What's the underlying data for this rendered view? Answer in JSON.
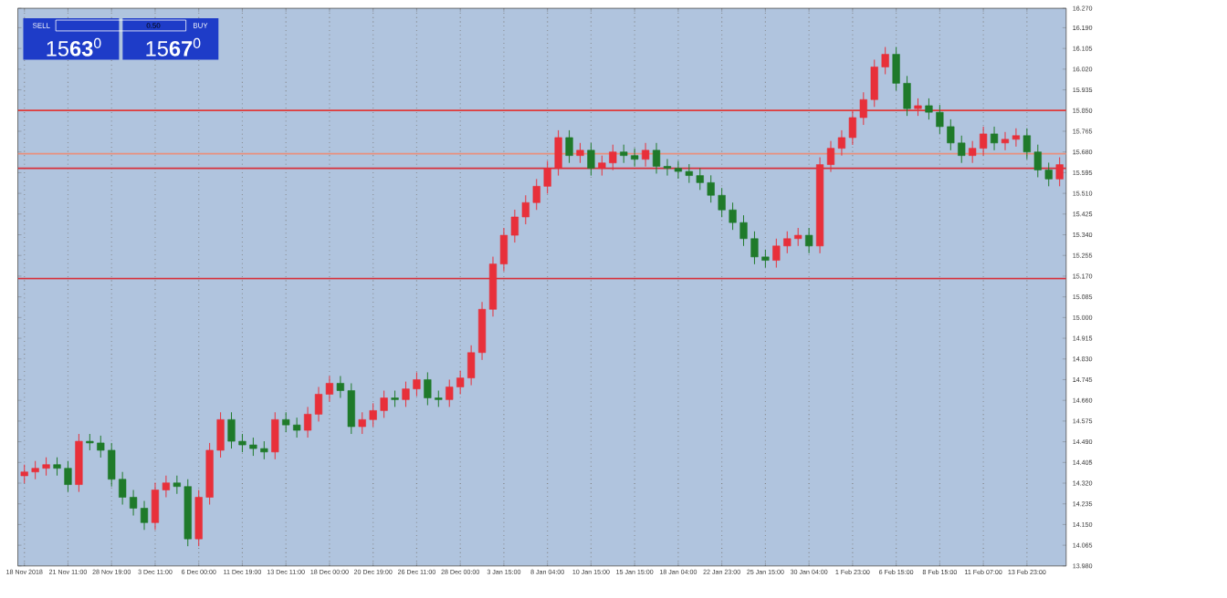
{
  "chart_data": {
    "type": "candlestick",
    "categories": [
      "18 Nov 2018",
      null,
      null,
      null,
      "21 Nov 11:00",
      null,
      null,
      null,
      "28 Nov 19:00",
      null,
      null,
      null,
      "3 Dec 11:00",
      null,
      null,
      null,
      "6 Dec 00:00",
      null,
      null,
      null,
      "11 Dec 19:00",
      null,
      null,
      null,
      "13 Dec 11:00",
      null,
      null,
      null,
      "18 Dec 00:00",
      null,
      null,
      null,
      "20 Dec 19:00",
      null,
      null,
      null,
      "26 Dec 11:00",
      null,
      null,
      null,
      "28 Dec 00:00",
      null,
      null,
      null,
      "3 Jan 15:00",
      null,
      null,
      null,
      "8 Jan 04:00",
      null,
      null,
      null,
      "10 Jan 15:00",
      null,
      null,
      null,
      "15 Jan 15:00",
      null,
      null,
      null,
      "18 Jan 04:00",
      null,
      null,
      null,
      "22 Jan 23:00",
      null,
      null,
      null,
      "25 Jan 15:00",
      null,
      null,
      null,
      "30 Jan 04:00",
      null,
      null,
      null,
      "1 Feb 23:00",
      null,
      null,
      null,
      "6 Feb 15:00",
      null,
      null,
      null,
      "8 Feb 15:00",
      null,
      null,
      null,
      "11 Feb 07:00",
      null,
      null,
      null,
      "13 Feb 23:00",
      null,
      null,
      null
    ],
    "ohlc": [
      [
        14.35,
        14.396,
        14.32,
        14.366
      ],
      [
        14.366,
        14.411,
        14.336,
        14.381
      ],
      [
        14.381,
        14.426,
        14.351,
        14.396
      ],
      [
        14.396,
        14.426,
        14.351,
        14.381
      ],
      [
        14.381,
        14.411,
        14.284,
        14.314
      ],
      [
        14.314,
        14.522,
        14.284,
        14.492
      ],
      [
        14.492,
        14.522,
        14.455,
        14.485
      ],
      [
        14.485,
        14.515,
        14.425,
        14.455
      ],
      [
        14.455,
        14.485,
        14.306,
        14.336
      ],
      [
        14.336,
        14.366,
        14.232,
        14.262
      ],
      [
        14.262,
        14.292,
        14.187,
        14.217
      ],
      [
        14.217,
        14.247,
        14.128,
        14.158
      ],
      [
        14.158,
        14.322,
        14.128,
        14.292
      ],
      [
        14.292,
        14.351,
        14.262,
        14.321
      ],
      [
        14.321,
        14.351,
        14.276,
        14.306
      ],
      [
        14.306,
        14.336,
        14.061,
        14.091
      ],
      [
        14.091,
        14.292,
        14.061,
        14.262
      ],
      [
        14.262,
        14.485,
        14.232,
        14.455
      ],
      [
        14.455,
        14.611,
        14.425,
        14.581
      ],
      [
        14.581,
        14.611,
        14.462,
        14.492
      ],
      [
        14.492,
        14.522,
        14.447,
        14.477
      ],
      [
        14.477,
        14.507,
        14.432,
        14.462
      ],
      [
        14.462,
        14.492,
        14.418,
        14.448
      ],
      [
        14.448,
        14.611,
        14.418,
        14.581
      ],
      [
        14.581,
        14.611,
        14.529,
        14.559
      ],
      [
        14.559,
        14.589,
        14.507,
        14.537
      ],
      [
        14.537,
        14.633,
        14.507,
        14.603
      ],
      [
        14.603,
        14.715,
        14.573,
        14.685
      ],
      [
        14.685,
        14.76,
        14.655,
        14.73
      ],
      [
        14.73,
        14.76,
        14.67,
        14.7
      ],
      [
        14.7,
        14.73,
        14.522,
        14.552
      ],
      [
        14.552,
        14.611,
        14.522,
        14.581
      ],
      [
        14.581,
        14.648,
        14.551,
        14.618
      ],
      [
        14.618,
        14.7,
        14.588,
        14.67
      ],
      [
        14.67,
        14.7,
        14.633,
        14.663
      ],
      [
        14.663,
        14.737,
        14.633,
        14.707
      ],
      [
        14.707,
        14.775,
        14.677,
        14.745
      ],
      [
        14.745,
        14.775,
        14.64,
        14.67
      ],
      [
        14.67,
        14.7,
        14.633,
        14.663
      ],
      [
        14.663,
        14.745,
        14.633,
        14.715
      ],
      [
        14.715,
        14.782,
        14.685,
        14.752
      ],
      [
        14.752,
        14.886,
        14.722,
        14.856
      ],
      [
        14.856,
        15.064,
        14.826,
        15.034
      ],
      [
        15.034,
        15.25,
        15.004,
        15.22
      ],
      [
        15.22,
        15.368,
        15.19,
        15.338
      ],
      [
        15.338,
        15.443,
        15.308,
        15.413
      ],
      [
        15.413,
        15.502,
        15.383,
        15.472
      ],
      [
        15.472,
        15.569,
        15.442,
        15.539
      ],
      [
        15.539,
        15.643,
        15.509,
        15.613
      ],
      [
        15.613,
        15.769,
        15.583,
        15.739
      ],
      [
        15.739,
        15.769,
        15.635,
        15.665
      ],
      [
        15.665,
        15.717,
        15.635,
        15.687
      ],
      [
        15.687,
        15.717,
        15.583,
        15.613
      ],
      [
        15.613,
        15.665,
        15.583,
        15.635
      ],
      [
        15.635,
        15.71,
        15.605,
        15.68
      ],
      [
        15.68,
        15.71,
        15.635,
        15.665
      ],
      [
        15.665,
        15.695,
        15.62,
        15.65
      ],
      [
        15.65,
        15.717,
        15.62,
        15.687
      ],
      [
        15.687,
        15.717,
        15.591,
        15.621
      ],
      [
        15.621,
        15.651,
        15.583,
        15.613
      ],
      [
        15.613,
        15.643,
        15.57,
        15.6
      ],
      [
        15.6,
        15.63,
        15.553,
        15.583
      ],
      [
        15.583,
        15.613,
        15.524,
        15.554
      ],
      [
        15.554,
        15.584,
        15.472,
        15.502
      ],
      [
        15.502,
        15.532,
        15.412,
        15.442
      ],
      [
        15.442,
        15.472,
        15.36,
        15.39
      ],
      [
        15.39,
        15.42,
        15.294,
        15.324
      ],
      [
        15.324,
        15.354,
        15.219,
        15.249
      ],
      [
        15.249,
        15.279,
        15.205,
        15.235
      ],
      [
        15.235,
        15.324,
        15.205,
        15.294
      ],
      [
        15.294,
        15.354,
        15.264,
        15.324
      ],
      [
        15.324,
        15.368,
        15.294,
        15.338
      ],
      [
        15.338,
        15.368,
        15.264,
        15.294
      ],
      [
        15.294,
        15.658,
        15.264,
        15.628
      ],
      [
        15.628,
        15.725,
        15.598,
        15.695
      ],
      [
        15.695,
        15.769,
        15.665,
        15.739
      ],
      [
        15.739,
        15.851,
        15.709,
        15.821
      ],
      [
        15.821,
        15.925,
        15.791,
        15.895
      ],
      [
        15.895,
        16.059,
        15.865,
        16.029
      ],
      [
        16.029,
        16.111,
        15.999,
        16.081
      ],
      [
        16.081,
        16.111,
        15.932,
        15.962
      ],
      [
        15.962,
        15.992,
        15.828,
        15.858
      ],
      [
        15.858,
        15.9,
        15.828,
        15.87
      ],
      [
        15.87,
        15.9,
        15.813,
        15.843
      ],
      [
        15.843,
        15.873,
        15.754,
        15.784
      ],
      [
        15.784,
        15.814,
        15.687,
        15.717
      ],
      [
        15.717,
        15.747,
        15.635,
        15.665
      ],
      [
        15.665,
        15.725,
        15.635,
        15.695
      ],
      [
        15.695,
        15.784,
        15.665,
        15.754
      ],
      [
        15.754,
        15.784,
        15.687,
        15.717
      ],
      [
        15.717,
        15.762,
        15.687,
        15.732
      ],
      [
        15.732,
        15.777,
        15.702,
        15.747
      ],
      [
        15.747,
        15.777,
        15.65,
        15.68
      ],
      [
        15.68,
        15.71,
        15.576,
        15.606
      ],
      [
        15.606,
        15.636,
        15.539,
        15.569
      ],
      [
        15.569,
        15.658,
        15.539,
        15.628
      ]
    ],
    "colors": [
      "#e8303a",
      "#e8303a",
      "#e8303a",
      "#1f7a2a",
      "#1f7a2a",
      "#e8303a",
      "#1f7a2a",
      "#1f7a2a",
      "#1f7a2a",
      "#1f7a2a",
      "#1f7a2a",
      "#1f7a2a",
      "#e8303a",
      "#e8303a",
      "#1f7a2a",
      "#1f7a2a",
      "#e8303a",
      "#e8303a",
      "#e8303a",
      "#1f7a2a",
      "#1f7a2a",
      "#1f7a2a",
      "#1f7a2a",
      "#e8303a",
      "#1f7a2a",
      "#1f7a2a",
      "#e8303a",
      "#e8303a",
      "#e8303a",
      "#1f7a2a",
      "#1f7a2a",
      "#e8303a",
      "#e8303a",
      "#e8303a",
      "#1f7a2a",
      "#e8303a",
      "#e8303a",
      "#1f7a2a",
      "#1f7a2a",
      "#e8303a",
      "#e8303a",
      "#e8303a",
      "#e8303a",
      "#e8303a",
      "#e8303a",
      "#e8303a",
      "#e8303a",
      "#e8303a",
      "#e8303a",
      "#e8303a",
      "#1f7a2a",
      "#e8303a",
      "#1f7a2a",
      "#e8303a",
      "#e8303a",
      "#1f7a2a",
      "#1f7a2a",
      "#e8303a",
      "#1f7a2a",
      "#1f7a2a",
      "#1f7a2a",
      "#1f7a2a",
      "#1f7a2a",
      "#1f7a2a",
      "#1f7a2a",
      "#1f7a2a",
      "#1f7a2a",
      "#1f7a2a",
      "#1f7a2a",
      "#e8303a",
      "#e8303a",
      "#e8303a",
      "#1f7a2a",
      "#e8303a",
      "#e8303a",
      "#e8303a",
      "#e8303a",
      "#e8303a",
      "#e8303a",
      "#e8303a",
      "#1f7a2a",
      "#1f7a2a",
      "#e8303a",
      "#1f7a2a",
      "#1f7a2a",
      "#1f7a2a",
      "#1f7a2a",
      "#e8303a",
      "#e8303a",
      "#1f7a2a",
      "#e8303a",
      "#e8303a",
      "#1f7a2a",
      "#1f7a2a",
      "#1f7a2a",
      "#e8303a"
    ],
    "ylim": [
      13.98,
      16.27
    ],
    "yticks": [
      {
        "value": 13.98,
        "label": "13.980"
      },
      {
        "value": 14.065,
        "label": "14.065"
      },
      {
        "value": 14.15,
        "label": "14.150"
      },
      {
        "value": 14.235,
        "label": "14.235"
      },
      {
        "value": 14.32,
        "label": "14.320"
      },
      {
        "value": 14.405,
        "label": "14.405"
      },
      {
        "value": 14.49,
        "label": "14.490"
      },
      {
        "value": 14.575,
        "label": "14.575"
      },
      {
        "value": 14.66,
        "label": "14.660"
      },
      {
        "value": 14.745,
        "label": "14.745"
      },
      {
        "value": 14.83,
        "label": "14.830"
      },
      {
        "value": 14.915,
        "label": "14.915"
      },
      {
        "value": 15.0,
        "label": "15.000"
      },
      {
        "value": 15.085,
        "label": "15.085"
      },
      {
        "value": 15.17,
        "label": "15.170"
      },
      {
        "value": 15.255,
        "label": "15.255"
      },
      {
        "value": 15.34,
        "label": "15.340"
      },
      {
        "value": 15.425,
        "label": "15.425"
      },
      {
        "value": 15.51,
        "label": "15.510"
      },
      {
        "value": 15.595,
        "label": "15.595"
      },
      {
        "value": 15.68,
        "label": "15.680"
      },
      {
        "value": 15.765,
        "label": "15.765"
      },
      {
        "value": 15.85,
        "label": "15.850"
      },
      {
        "value": 15.935,
        "label": "15.935"
      },
      {
        "value": 16.02,
        "label": "16.020"
      },
      {
        "value": 16.105,
        "label": "16.105"
      },
      {
        "value": 16.19,
        "label": "16.190"
      },
      {
        "value": 16.27,
        "label": "16.270"
      }
    ],
    "ref_lines": [
      {
        "axis": "y",
        "value": 15.851,
        "color": "#e03a3a"
      },
      {
        "axis": "y",
        "value": 15.673,
        "color": "#e8907e"
      },
      {
        "axis": "y",
        "value": 15.613,
        "color": "#d8303a"
      },
      {
        "axis": "y",
        "value": 15.16,
        "color": "#d8303a"
      }
    ],
    "annotations": [
      "SELL",
      "0.50",
      "BUY",
      "15**63**$^{0}$",
      "15**67**$^{0}$"
    ],
    "grid": "x"
  }
}
